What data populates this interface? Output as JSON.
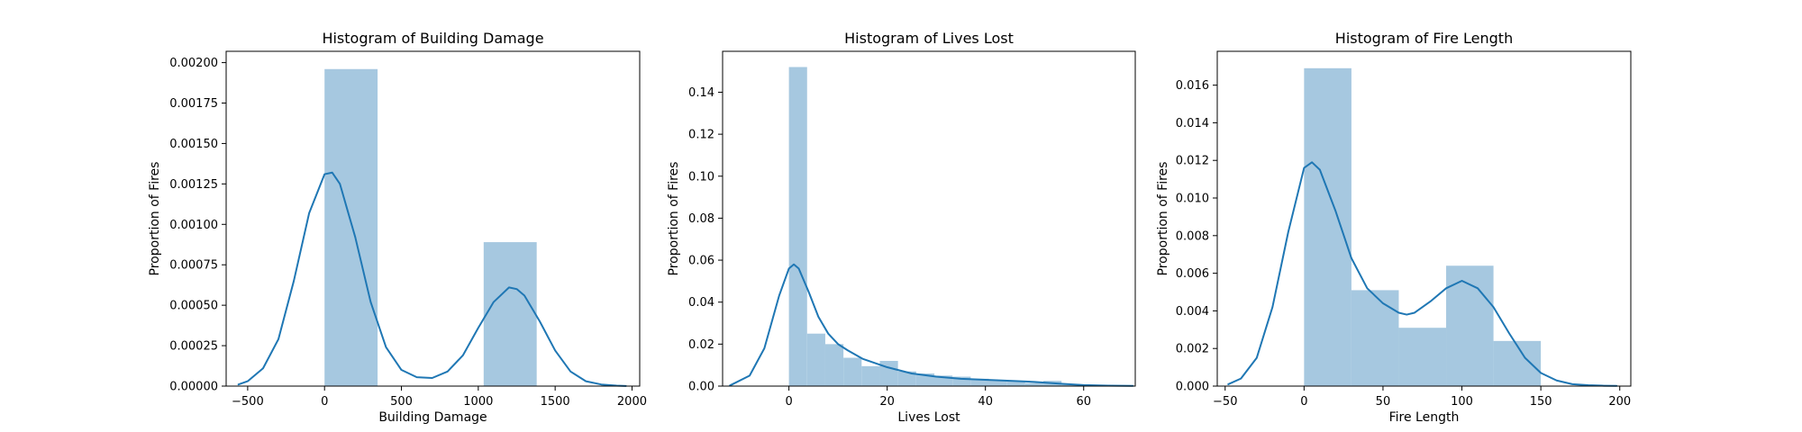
{
  "colors": {
    "hist_fill": "#a6c8e0",
    "kde_line": "#1f77b4",
    "axes": "#000000",
    "background": "#ffffff"
  },
  "chart_data": [
    {
      "type": "bar",
      "title": "Histogram of Building Damage",
      "xlabel": "Building Damage",
      "ylabel": "Proportion of Fires",
      "xlim": [
        -640,
        2050
      ],
      "ylim": [
        0,
        0.00207
      ],
      "x_ticks": [
        -500,
        0,
        500,
        1000,
        1500,
        2000
      ],
      "x_tick_labels": [
        "−500",
        "0",
        "500",
        "1000",
        "1500",
        "2000"
      ],
      "y_ticks": [
        0,
        0.00025,
        0.0005,
        0.00075,
        0.001,
        0.00125,
        0.0015,
        0.00175,
        0.002
      ],
      "y_tick_labels": [
        "0.00000",
        "0.00025",
        "0.00050",
        "0.00075",
        "0.00100",
        "0.00125",
        "0.00150",
        "0.00175",
        "0.00200"
      ],
      "bins": [
        {
          "x0": 0,
          "x1": 345,
          "value": 0.00196
        },
        {
          "x0": 345,
          "x1": 690,
          "value": 0.0
        },
        {
          "x0": 690,
          "x1": 1035,
          "value": 0.0
        },
        {
          "x0": 1035,
          "x1": 1380,
          "value": 0.00089
        }
      ],
      "kde": {
        "x": [
          -560,
          -500,
          -400,
          -300,
          -200,
          -100,
          0,
          50,
          100,
          200,
          300,
          400,
          500,
          600,
          700,
          800,
          900,
          1000,
          1100,
          1200,
          1250,
          1300,
          1400,
          1500,
          1600,
          1700,
          1800,
          1900,
          1960
        ],
        "y": [
          1e-05,
          3e-05,
          0.00011,
          0.00029,
          0.00065,
          0.00107,
          0.00131,
          0.00132,
          0.00125,
          0.00092,
          0.00052,
          0.00024,
          0.0001,
          5.5e-05,
          5e-05,
          9e-05,
          0.00019,
          0.00036,
          0.00052,
          0.00061,
          0.0006,
          0.00056,
          0.0004,
          0.00022,
          9e-05,
          3e-05,
          1e-05,
          3e-06,
          1e-06
        ]
      }
    },
    {
      "type": "bar",
      "title": "Histogram of Lives Lost",
      "xlabel": "Lives Lost",
      "ylabel": "Proportion of Fires",
      "xlim": [
        -13.5,
        70.5
      ],
      "ylim": [
        0,
        0.1595
      ],
      "x_ticks": [
        0,
        20,
        40,
        60
      ],
      "x_tick_labels": [
        "0",
        "20",
        "40",
        "60"
      ],
      "y_ticks": [
        0,
        0.02,
        0.04,
        0.06,
        0.08,
        0.1,
        0.12,
        0.14
      ],
      "y_tick_labels": [
        "0.00",
        "0.02",
        "0.04",
        "0.06",
        "0.08",
        "0.10",
        "0.12",
        "0.14"
      ],
      "bins": [
        {
          "x0": 0,
          "x1": 3.7,
          "value": 0.152
        },
        {
          "x0": 3.7,
          "x1": 7.4,
          "value": 0.025
        },
        {
          "x0": 7.4,
          "x1": 11.1,
          "value": 0.02
        },
        {
          "x0": 11.1,
          "x1": 14.8,
          "value": 0.0135
        },
        {
          "x0": 14.8,
          "x1": 18.5,
          "value": 0.0095
        },
        {
          "x0": 18.5,
          "x1": 22.2,
          "value": 0.012
        },
        {
          "x0": 22.2,
          "x1": 25.9,
          "value": 0.007
        },
        {
          "x0": 25.9,
          "x1": 29.6,
          "value": 0.006
        },
        {
          "x0": 29.6,
          "x1": 33.3,
          "value": 0.005
        },
        {
          "x0": 33.3,
          "x1": 37.0,
          "value": 0.0045
        },
        {
          "x0": 37.0,
          "x1": 40.7,
          "value": 0.0035
        },
        {
          "x0": 40.7,
          "x1": 44.4,
          "value": 0.003
        },
        {
          "x0": 44.4,
          "x1": 48.1,
          "value": 0.0025
        },
        {
          "x0": 48.1,
          "x1": 51.8,
          "value": 0.0015
        },
        {
          "x0": 51.8,
          "x1": 55.5,
          "value": 0.0025
        },
        {
          "x0": 55.5,
          "x1": 59.2,
          "value": 0.001
        }
      ],
      "kde": {
        "x": [
          -12,
          -8,
          -5,
          -2,
          0,
          1,
          2,
          4,
          6,
          8,
          10,
          12,
          15,
          20,
          25,
          30,
          35,
          40,
          45,
          50,
          55,
          60,
          65,
          70
        ],
        "y": [
          0.0003,
          0.005,
          0.018,
          0.043,
          0.056,
          0.058,
          0.056,
          0.045,
          0.033,
          0.025,
          0.02,
          0.017,
          0.013,
          0.009,
          0.006,
          0.0045,
          0.0035,
          0.003,
          0.0025,
          0.002,
          0.0012,
          0.0005,
          0.0002,
          0.0001
        ]
      }
    },
    {
      "type": "bar",
      "title": "Histogram of Fire Length",
      "xlabel": "Fire Length",
      "ylabel": "Proportion of Fires",
      "xlim": [
        -55,
        207
      ],
      "ylim": [
        0,
        0.0178
      ],
      "x_ticks": [
        -50,
        0,
        50,
        100,
        150,
        200
      ],
      "x_tick_labels": [
        "−50",
        "0",
        "50",
        "100",
        "150",
        "200"
      ],
      "y_ticks": [
        0,
        0.002,
        0.004,
        0.006,
        0.008,
        0.01,
        0.012,
        0.014,
        0.016
      ],
      "y_tick_labels": [
        "0.000",
        "0.002",
        "0.004",
        "0.006",
        "0.008",
        "0.010",
        "0.012",
        "0.014",
        "0.016"
      ],
      "bins": [
        {
          "x0": 0,
          "x1": 30,
          "value": 0.0169
        },
        {
          "x0": 30,
          "x1": 60,
          "value": 0.0051
        },
        {
          "x0": 60,
          "x1": 90,
          "value": 0.0031
        },
        {
          "x0": 90,
          "x1": 120,
          "value": 0.0064
        },
        {
          "x0": 120,
          "x1": 150,
          "value": 0.0024
        }
      ],
      "kde": {
        "x": [
          -48,
          -40,
          -30,
          -20,
          -10,
          0,
          5,
          10,
          20,
          30,
          40,
          50,
          60,
          65,
          70,
          80,
          90,
          100,
          110,
          120,
          130,
          140,
          150,
          160,
          170,
          180,
          190,
          198
        ],
        "y": [
          0.0001,
          0.0004,
          0.0015,
          0.0042,
          0.0082,
          0.0116,
          0.0119,
          0.0115,
          0.0093,
          0.0068,
          0.0052,
          0.0044,
          0.0039,
          0.0038,
          0.0039,
          0.0045,
          0.0052,
          0.0056,
          0.0052,
          0.0042,
          0.0028,
          0.0015,
          0.0007,
          0.0003,
          0.0001,
          5e-05,
          2e-05,
          1e-05
        ]
      }
    }
  ]
}
